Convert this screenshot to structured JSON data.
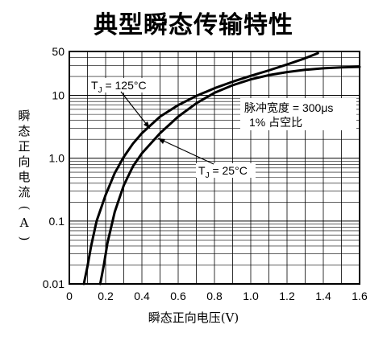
{
  "chart_data": {
    "type": "line",
    "title": "典型瞬态传输特性",
    "xlabel": "瞬态正向电压(V)",
    "ylabel": "瞬态正向电流(A)",
    "xlim": [
      0,
      1.6
    ],
    "ylim": [
      0.01,
      50
    ],
    "yscale": "log",
    "grid": true,
    "x_ticks": [
      0,
      0.2,
      0.4,
      0.6,
      0.8,
      1.0,
      1.2,
      1.4,
      1.6
    ],
    "x_tick_labels": [
      "0",
      "0.2",
      "0.4",
      "0.6",
      "0.8",
      "1.0",
      "1.2",
      "1.4",
      "1.6"
    ],
    "y_ticks": [
      0.01,
      0.1,
      1.0,
      10,
      50
    ],
    "y_tick_labels": [
      "0.01",
      "0.1",
      "1.0",
      "10",
      "50"
    ],
    "series": [
      {
        "name": "TJ = 125°C",
        "label_text": "T",
        "label_sub": "J",
        "label_rest": " = 125°C",
        "points": [
          [
            0.08,
            0.01
          ],
          [
            0.1,
            0.019
          ],
          [
            0.12,
            0.04
          ],
          [
            0.15,
            0.1
          ],
          [
            0.2,
            0.26
          ],
          [
            0.25,
            0.58
          ],
          [
            0.3,
            1.05
          ],
          [
            0.35,
            1.7
          ],
          [
            0.4,
            2.5
          ],
          [
            0.5,
            4.6
          ],
          [
            0.6,
            7.0
          ],
          [
            0.7,
            9.8
          ],
          [
            0.8,
            13
          ],
          [
            0.9,
            16.5
          ],
          [
            1.0,
            20.5
          ],
          [
            1.1,
            25
          ],
          [
            1.2,
            31
          ],
          [
            1.3,
            39
          ],
          [
            1.37,
            47
          ]
        ]
      },
      {
        "name": "TJ = 25°C",
        "label_text": "T",
        "label_sub": "J",
        "label_rest": " = 25°C",
        "points": [
          [
            0.17,
            0.01
          ],
          [
            0.19,
            0.02
          ],
          [
            0.21,
            0.045
          ],
          [
            0.25,
            0.14
          ],
          [
            0.3,
            0.37
          ],
          [
            0.35,
            0.74
          ],
          [
            0.4,
            1.2
          ],
          [
            0.5,
            2.5
          ],
          [
            0.6,
            4.6
          ],
          [
            0.7,
            7.5
          ],
          [
            0.8,
            11
          ],
          [
            0.9,
            14.5
          ],
          [
            1.0,
            18
          ],
          [
            1.1,
            21
          ],
          [
            1.2,
            23.5
          ],
          [
            1.3,
            25.5
          ],
          [
            1.4,
            27
          ],
          [
            1.5,
            28
          ],
          [
            1.6,
            28.5
          ]
        ]
      }
    ],
    "annotations": {
      "pulse_width": "脉冲宽度 = 300μs",
      "duty_cycle": "1% 占空比"
    }
  }
}
